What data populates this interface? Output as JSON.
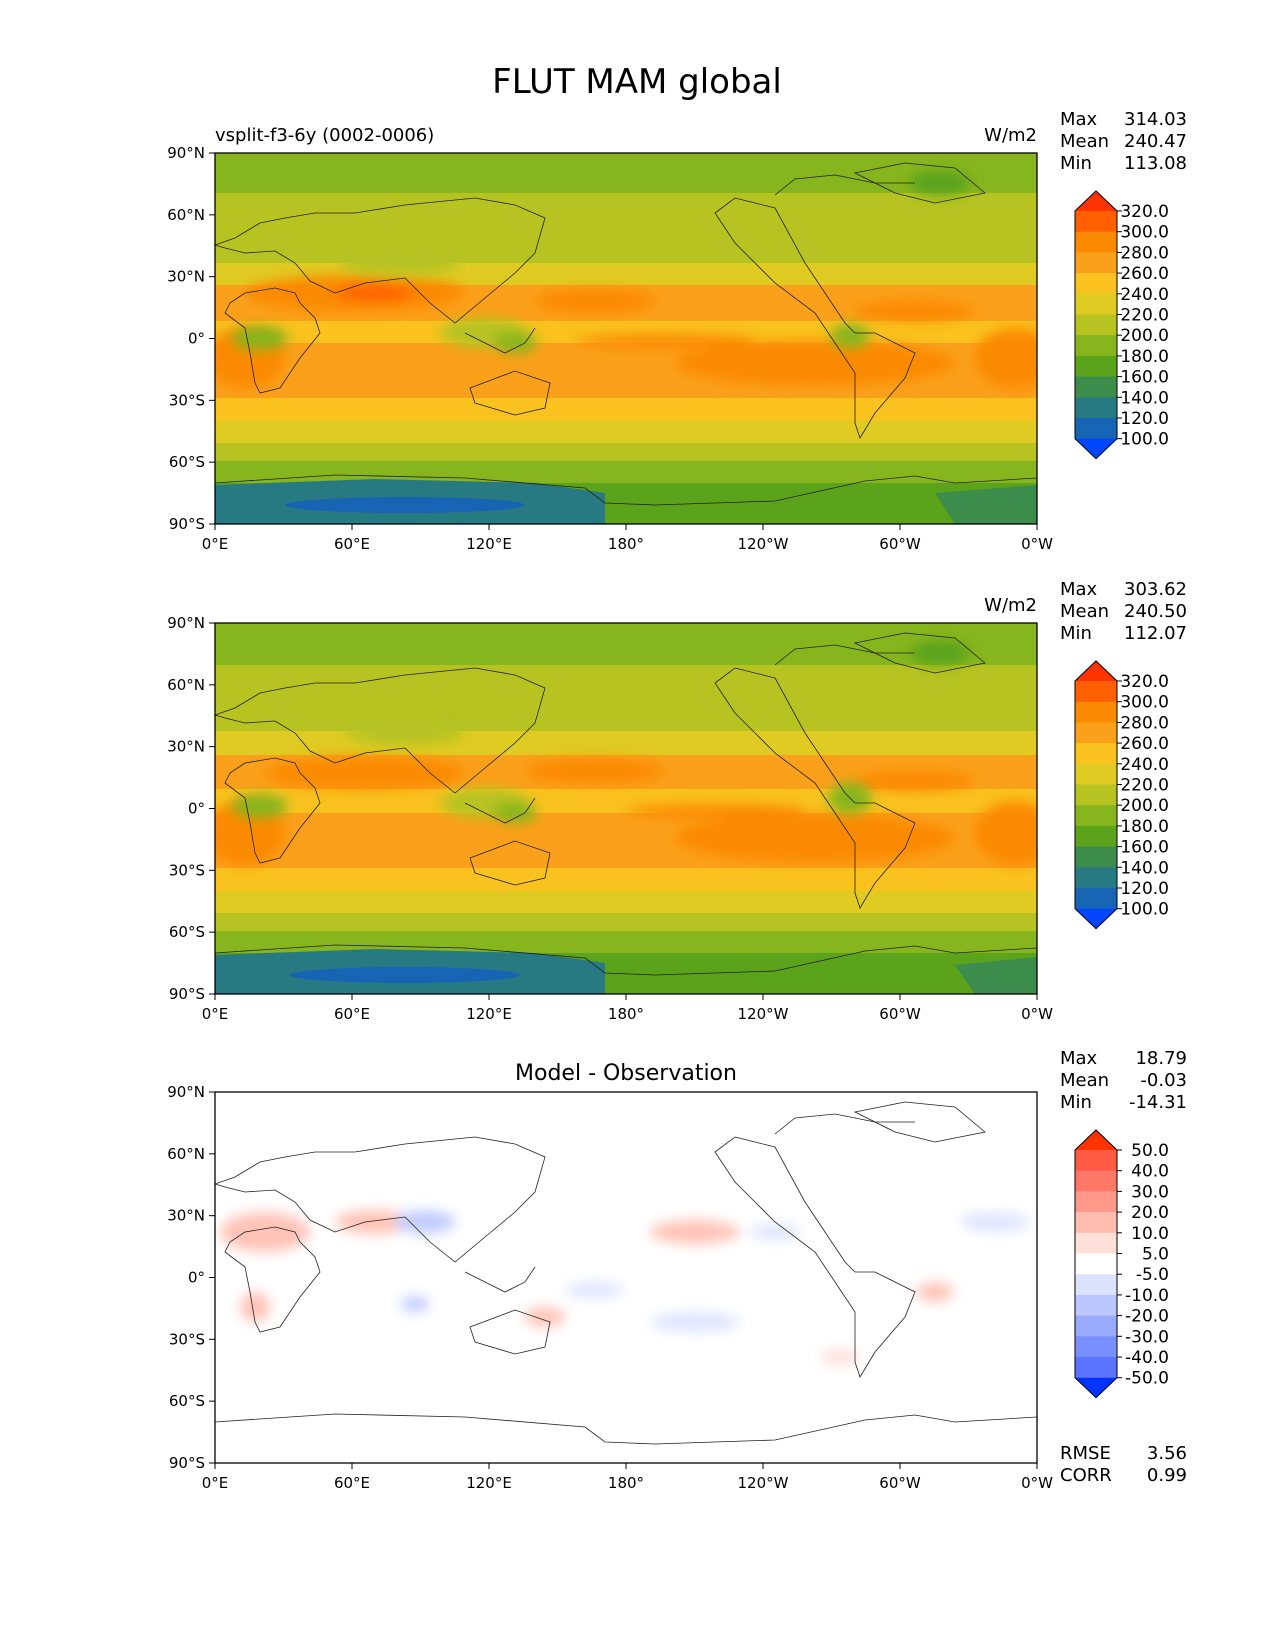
{
  "figure": {
    "title": "FLUT MAM global"
  },
  "panels": [
    {
      "id": "test",
      "left_title": "vsplit-f3-6y (0002-0006)",
      "center_title": "",
      "units": "W/m2",
      "stats": [
        {
          "label": "Max",
          "value": "314.03"
        },
        {
          "label": "Mean",
          "value": "240.47"
        },
        {
          "label": "Min",
          "value": "113.08"
        }
      ],
      "colorbar": {
        "labels": [
          "320.0",
          "300.0",
          "280.0",
          "260.0",
          "240.0",
          "220.0",
          "200.0",
          "180.0",
          "160.0",
          "140.0",
          "120.0",
          "100.0"
        ],
        "colors": [
          "#ff3300",
          "#ff5f00",
          "#fb8a00",
          "#fba01a",
          "#f9c21e",
          "#e0cb22",
          "#b6c321",
          "#87b51d",
          "#5aa31b",
          "#3c8c4c",
          "#277a82",
          "#1864b4",
          "#0046ff"
        ]
      },
      "extra_stats": []
    },
    {
      "id": "reference",
      "left_title": "",
      "center_title": "",
      "units": "W/m2",
      "stats": [
        {
          "label": "Max",
          "value": "303.62"
        },
        {
          "label": "Mean",
          "value": "240.50"
        },
        {
          "label": "Min",
          "value": "112.07"
        }
      ],
      "colorbar": {
        "labels": [
          "320.0",
          "300.0",
          "280.0",
          "260.0",
          "240.0",
          "220.0",
          "200.0",
          "180.0",
          "160.0",
          "140.0",
          "120.0",
          "100.0"
        ],
        "colors": [
          "#ff3300",
          "#ff5f00",
          "#fb8a00",
          "#fba01a",
          "#f9c21e",
          "#e0cb22",
          "#b6c321",
          "#87b51d",
          "#5aa31b",
          "#3c8c4c",
          "#277a82",
          "#1864b4",
          "#0046ff"
        ]
      },
      "extra_stats": []
    },
    {
      "id": "difference",
      "left_title": "",
      "center_title": "Model - Observation",
      "units": "",
      "stats": [
        {
          "label": "Max",
          "value": "18.79"
        },
        {
          "label": "Mean",
          "value": "-0.03"
        },
        {
          "label": "Min",
          "value": "-14.31"
        }
      ],
      "colorbar": {
        "labels": [
          "50.0",
          "40.0",
          "30.0",
          "20.0",
          "10.0",
          "5.0",
          "-5.0",
          "-10.0",
          "-20.0",
          "-30.0",
          "-40.0",
          "-50.0"
        ],
        "colors": [
          "#ff3300",
          "#ff5a44",
          "#ff7766",
          "#ff9a8a",
          "#ffbdb0",
          "#ffdfd8",
          "#ffffff",
          "#dde3ff",
          "#bcc7ff",
          "#99aaff",
          "#7a8fff",
          "#5c74ff",
          "#0033ff"
        ]
      },
      "extra_stats": [
        {
          "label": "RMSE",
          "value": "3.56"
        },
        {
          "label": "CORR",
          "value": "0.99"
        }
      ]
    }
  ],
  "axes": {
    "lat_ticks": [
      "90°N",
      "60°N",
      "30°N",
      "0°",
      "30°S",
      "60°S",
      "90°S"
    ],
    "lon_ticks": [
      "0°E",
      "60°E",
      "120°E",
      "180°",
      "120°W",
      "60°W",
      "0°W"
    ]
  }
}
